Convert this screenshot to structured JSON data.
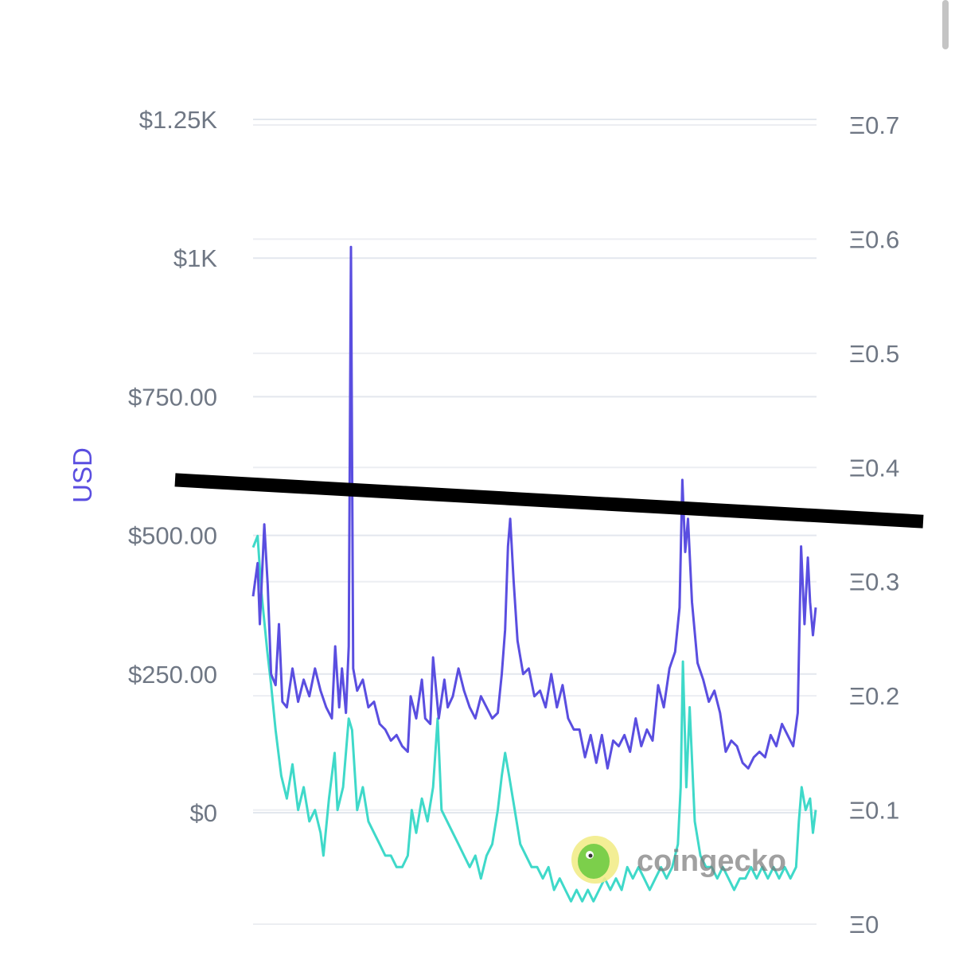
{
  "chart_data": {
    "type": "line",
    "title": "",
    "watermark": "coingecko",
    "y_left": {
      "label": "USD",
      "ticks": [
        "$0",
        "$250.00",
        "$500.00",
        "$750.00",
        "$1K",
        "$1.25K"
      ],
      "tick_values": [
        0,
        250,
        500,
        750,
        1000,
        1250
      ],
      "range": [
        -200,
        1250
      ]
    },
    "y_right": {
      "label": "",
      "ticks": [
        "Ξ0",
        "Ξ0.1",
        "Ξ0.2",
        "Ξ0.3",
        "Ξ0.4",
        "Ξ0.5",
        "Ξ0.6",
        "Ξ0.7"
      ],
      "tick_values": [
        0,
        0.1,
        0.2,
        0.3,
        0.4,
        0.5,
        0.6,
        0.7
      ],
      "range": [
        0,
        0.7
      ]
    },
    "grid": true,
    "x_range": [
      0,
      100
    ],
    "series": [
      {
        "axis": "left",
        "color": "#5a4ee0",
        "points": [
          [
            0,
            390
          ],
          [
            0.8,
            450
          ],
          [
            1.2,
            340
          ],
          [
            2,
            520
          ],
          [
            2.6,
            410
          ],
          [
            3.2,
            250
          ],
          [
            4,
            230
          ],
          [
            4.6,
            340
          ],
          [
            5.2,
            200
          ],
          [
            6,
            190
          ],
          [
            7,
            260
          ],
          [
            8,
            200
          ],
          [
            9,
            240
          ],
          [
            10,
            210
          ],
          [
            11,
            260
          ],
          [
            12,
            220
          ],
          [
            13,
            190
          ],
          [
            14,
            170
          ],
          [
            14.6,
            300
          ],
          [
            15.3,
            190
          ],
          [
            15.8,
            260
          ],
          [
            16.5,
            180
          ],
          [
            17,
            300
          ],
          [
            17.4,
            1020
          ],
          [
            17.8,
            260
          ],
          [
            18.5,
            220
          ],
          [
            19.5,
            240
          ],
          [
            20.5,
            190
          ],
          [
            21.5,
            200
          ],
          [
            22.5,
            160
          ],
          [
            23.5,
            150
          ],
          [
            24.5,
            130
          ],
          [
            25.5,
            140
          ],
          [
            26.5,
            120
          ],
          [
            27.5,
            110
          ],
          [
            28,
            210
          ],
          [
            29,
            170
          ],
          [
            30,
            240
          ],
          [
            30.6,
            170
          ],
          [
            31.5,
            160
          ],
          [
            32,
            280
          ],
          [
            33,
            170
          ],
          [
            34,
            240
          ],
          [
            34.6,
            190
          ],
          [
            35.5,
            210
          ],
          [
            36.5,
            260
          ],
          [
            37.5,
            220
          ],
          [
            38.5,
            190
          ],
          [
            39.5,
            170
          ],
          [
            40.5,
            210
          ],
          [
            41.5,
            190
          ],
          [
            42.5,
            170
          ],
          [
            43.5,
            180
          ],
          [
            44.2,
            250
          ],
          [
            44.8,
            330
          ],
          [
            45.3,
            480
          ],
          [
            45.7,
            530
          ],
          [
            46.3,
            420
          ],
          [
            47,
            310
          ],
          [
            48,
            250
          ],
          [
            49,
            260
          ],
          [
            50,
            210
          ],
          [
            51,
            220
          ],
          [
            52,
            190
          ],
          [
            53,
            250
          ],
          [
            54,
            190
          ],
          [
            55,
            230
          ],
          [
            56,
            170
          ],
          [
            57,
            150
          ],
          [
            58,
            150
          ],
          [
            59,
            100
          ],
          [
            60,
            140
          ],
          [
            61,
            90
          ],
          [
            62,
            140
          ],
          [
            63,
            80
          ],
          [
            64,
            130
          ],
          [
            65,
            120
          ],
          [
            66,
            140
          ],
          [
            67,
            110
          ],
          [
            68,
            170
          ],
          [
            69,
            120
          ],
          [
            70,
            150
          ],
          [
            71,
            130
          ],
          [
            72,
            230
          ],
          [
            73,
            190
          ],
          [
            74,
            260
          ],
          [
            75,
            290
          ],
          [
            75.8,
            370
          ],
          [
            76.3,
            600
          ],
          [
            76.8,
            470
          ],
          [
            77.3,
            530
          ],
          [
            78,
            380
          ],
          [
            79,
            270
          ],
          [
            80,
            240
          ],
          [
            81,
            200
          ],
          [
            82,
            220
          ],
          [
            83,
            180
          ],
          [
            84,
            110
          ],
          [
            85,
            130
          ],
          [
            86,
            120
          ],
          [
            87,
            90
          ],
          [
            88,
            80
          ],
          [
            89,
            100
          ],
          [
            90,
            110
          ],
          [
            91,
            100
          ],
          [
            92,
            140
          ],
          [
            93,
            120
          ],
          [
            94,
            160
          ],
          [
            95,
            140
          ],
          [
            96,
            120
          ],
          [
            96.8,
            180
          ],
          [
            97.4,
            480
          ],
          [
            98,
            340
          ],
          [
            98.6,
            460
          ],
          [
            99,
            380
          ],
          [
            99.5,
            320
          ],
          [
            100,
            370
          ]
        ]
      },
      {
        "axis": "right",
        "color": "#3fd9c9",
        "points": [
          [
            0,
            0.33
          ],
          [
            0.8,
            0.34
          ],
          [
            1.5,
            0.29
          ],
          [
            2.5,
            0.24
          ],
          [
            3.2,
            0.21
          ],
          [
            4,
            0.17
          ],
          [
            5,
            0.13
          ],
          [
            6,
            0.11
          ],
          [
            7,
            0.14
          ],
          [
            8,
            0.1
          ],
          [
            9,
            0.12
          ],
          [
            10,
            0.09
          ],
          [
            11,
            0.1
          ],
          [
            12,
            0.08
          ],
          [
            12.5,
            0.06
          ],
          [
            13.5,
            0.11
          ],
          [
            14.5,
            0.15
          ],
          [
            15,
            0.1
          ],
          [
            16,
            0.12
          ],
          [
            17,
            0.18
          ],
          [
            17.6,
            0.17
          ],
          [
            18.5,
            0.1
          ],
          [
            19.5,
            0.12
          ],
          [
            20.5,
            0.09
          ],
          [
            21.5,
            0.08
          ],
          [
            22.5,
            0.07
          ],
          [
            23.5,
            0.06
          ],
          [
            24.5,
            0.06
          ],
          [
            25.5,
            0.05
          ],
          [
            26.5,
            0.05
          ],
          [
            27.5,
            0.06
          ],
          [
            28.2,
            0.1
          ],
          [
            29,
            0.08
          ],
          [
            30,
            0.11
          ],
          [
            31,
            0.09
          ],
          [
            32,
            0.12
          ],
          [
            32.8,
            0.18
          ],
          [
            33.5,
            0.1
          ],
          [
            34.5,
            0.09
          ],
          [
            35.5,
            0.08
          ],
          [
            36.5,
            0.07
          ],
          [
            37.5,
            0.06
          ],
          [
            38.5,
            0.05
          ],
          [
            39.5,
            0.06
          ],
          [
            40.5,
            0.04
          ],
          [
            41.5,
            0.06
          ],
          [
            42.5,
            0.07
          ],
          [
            43.5,
            0.1
          ],
          [
            44.2,
            0.13
          ],
          [
            44.8,
            0.15
          ],
          [
            45.5,
            0.13
          ],
          [
            46.5,
            0.1
          ],
          [
            47.5,
            0.07
          ],
          [
            48.5,
            0.06
          ],
          [
            49.5,
            0.05
          ],
          [
            50.5,
            0.05
          ],
          [
            51.5,
            0.04
          ],
          [
            52.5,
            0.05
          ],
          [
            53.5,
            0.03
          ],
          [
            54.5,
            0.04
          ],
          [
            55.5,
            0.03
          ],
          [
            56.5,
            0.02
          ],
          [
            57.5,
            0.03
          ],
          [
            58.5,
            0.02
          ],
          [
            59.5,
            0.03
          ],
          [
            60.5,
            0.02
          ],
          [
            61.5,
            0.03
          ],
          [
            62.5,
            0.04
          ],
          [
            63.5,
            0.03
          ],
          [
            64.5,
            0.04
          ],
          [
            65.5,
            0.03
          ],
          [
            66.5,
            0.05
          ],
          [
            67.5,
            0.04
          ],
          [
            68.5,
            0.05
          ],
          [
            69.5,
            0.04
          ],
          [
            70.5,
            0.03
          ],
          [
            71.5,
            0.04
          ],
          [
            72.5,
            0.05
          ],
          [
            73.5,
            0.04
          ],
          [
            74.5,
            0.05
          ],
          [
            75.5,
            0.07
          ],
          [
            76,
            0.12
          ],
          [
            76.4,
            0.23
          ],
          [
            77,
            0.12
          ],
          [
            77.6,
            0.19
          ],
          [
            78.5,
            0.09
          ],
          [
            79.5,
            0.06
          ],
          [
            80.5,
            0.05
          ],
          [
            81.5,
            0.05
          ],
          [
            82.5,
            0.04
          ],
          [
            83.5,
            0.05
          ],
          [
            84.5,
            0.04
          ],
          [
            85.5,
            0.03
          ],
          [
            86.5,
            0.04
          ],
          [
            87.5,
            0.04
          ],
          [
            88.5,
            0.05
          ],
          [
            89.5,
            0.04
          ],
          [
            90.5,
            0.05
          ],
          [
            91.5,
            0.04
          ],
          [
            92.5,
            0.05
          ],
          [
            93.5,
            0.04
          ],
          [
            94.5,
            0.05
          ],
          [
            95.5,
            0.04
          ],
          [
            96.5,
            0.05
          ],
          [
            97,
            0.09
          ],
          [
            97.5,
            0.12
          ],
          [
            98.2,
            0.1
          ],
          [
            99,
            0.11
          ],
          [
            99.5,
            0.08
          ],
          [
            100,
            0.1
          ]
        ]
      }
    ],
    "annotation_line": {
      "color": "#000000",
      "y_start": 600,
      "y_end": 525
    }
  }
}
